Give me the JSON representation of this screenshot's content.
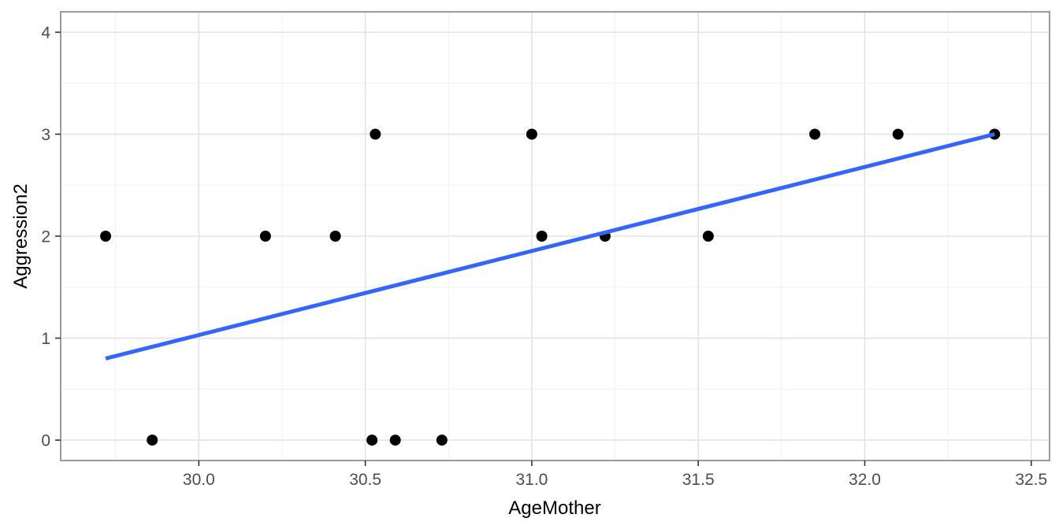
{
  "figure": {
    "background": "#FFFFFF"
  },
  "chart_data": {
    "type": "scatter",
    "title": "",
    "xlabel": "AgeMother",
    "ylabel": "Aggression2",
    "x_tick_labels": [
      "30.0",
      "30.5",
      "31.0",
      "31.5",
      "32.0",
      "32.5"
    ],
    "x_tick_values": [
      30.0,
      30.5,
      31.0,
      31.5,
      32.0,
      32.5
    ],
    "y_tick_labels": [
      "0",
      "1",
      "2",
      "3",
      "4"
    ],
    "y_tick_values": [
      0,
      1,
      2,
      3,
      4
    ],
    "xlim": [
      29.585,
      32.555
    ],
    "ylim": [
      -0.2,
      4.2
    ],
    "x_minor_step": 0.25,
    "y_minor_step": 0.5,
    "grid": "major+minor",
    "legend": "none",
    "points": [
      {
        "x": 29.72,
        "y": 2
      },
      {
        "x": 29.86,
        "y": 0
      },
      {
        "x": 30.2,
        "y": 2
      },
      {
        "x": 30.41,
        "y": 2
      },
      {
        "x": 30.52,
        "y": 0
      },
      {
        "x": 30.53,
        "y": 3
      },
      {
        "x": 30.59,
        "y": 0
      },
      {
        "x": 30.73,
        "y": 0
      },
      {
        "x": 31.0,
        "y": 3
      },
      {
        "x": 31.03,
        "y": 2
      },
      {
        "x": 31.22,
        "y": 2
      },
      {
        "x": 31.53,
        "y": 2
      },
      {
        "x": 31.85,
        "y": 3
      },
      {
        "x": 32.1,
        "y": 3
      },
      {
        "x": 32.39,
        "y": 3
      }
    ],
    "regression_line": {
      "x1": 29.72,
      "y1": 0.8,
      "x2": 32.39,
      "y2": 3.0
    },
    "colors": {
      "point": "#000000",
      "line": "#3366FF",
      "panel_bg": "#FFFFFF",
      "panel_border": "#9B9B9B",
      "grid_major": "#E3E3E3",
      "grid_minor": "#F1F1F1",
      "tick_mark": "#333333",
      "tick_label": "#4D4D4D",
      "axis_title": "#000000"
    }
  }
}
